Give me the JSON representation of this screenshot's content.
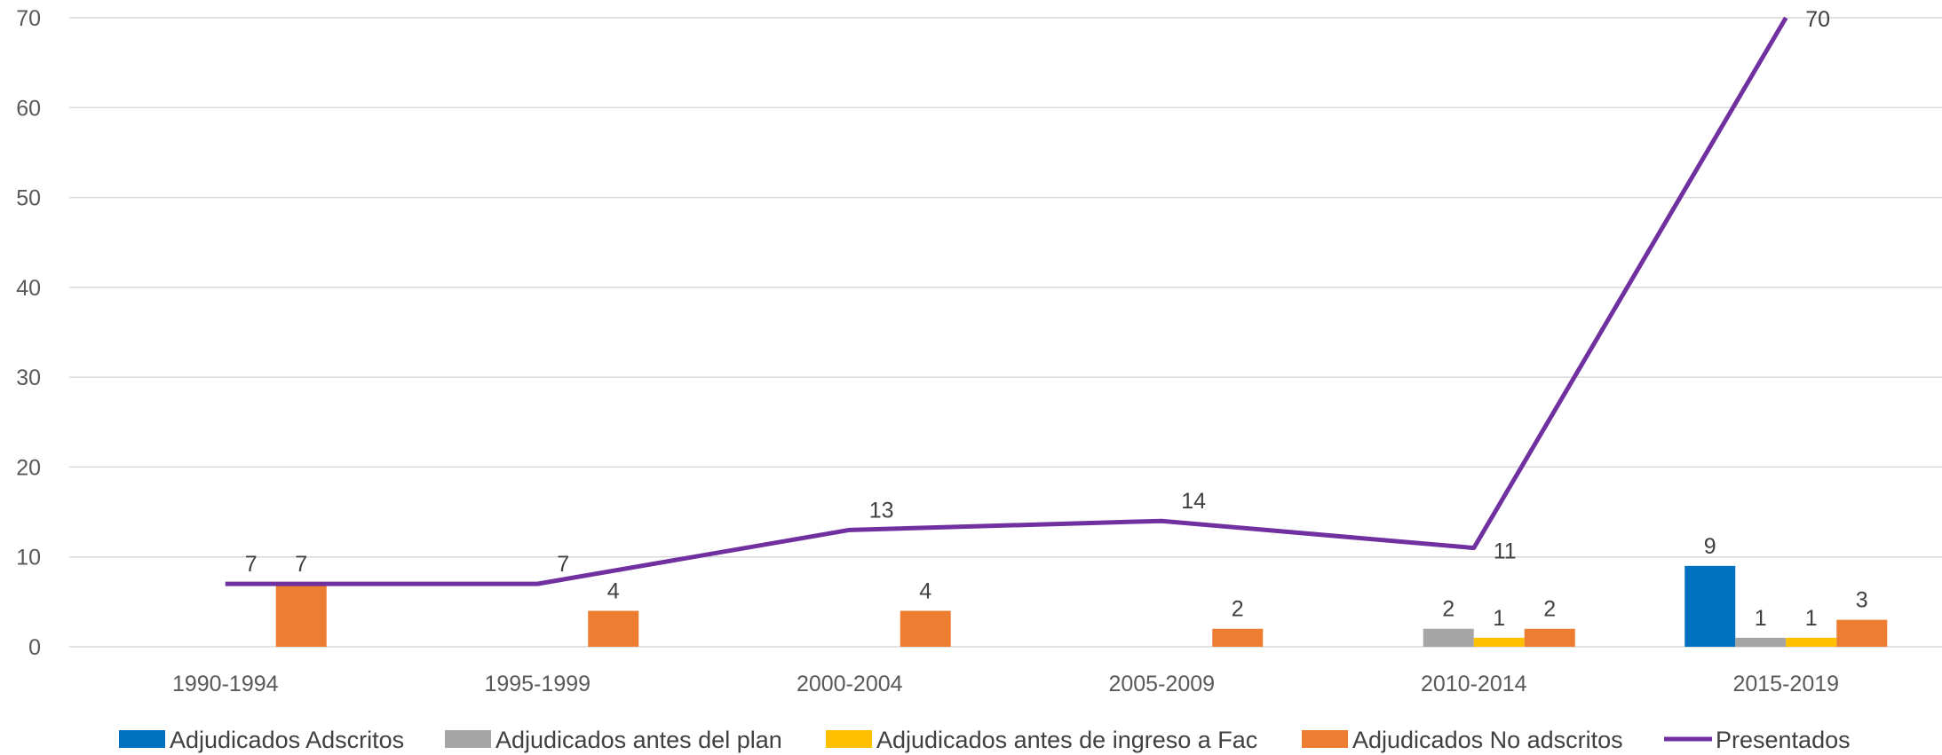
{
  "chart_data": {
    "type": "bar",
    "title": "",
    "xlabel": "",
    "ylabel": "",
    "ylim": [
      0,
      70
    ],
    "y_ticks": [
      0,
      10,
      20,
      30,
      40,
      50,
      60,
      70
    ],
    "grid": true,
    "legend_position": "bottom",
    "categories": [
      "1990-1994",
      "1995-1999",
      "2000-2004",
      "2005-2009",
      "2010-2014",
      "2015-2019"
    ],
    "series": [
      {
        "name": "Adjudicados Adscritos",
        "kind": "bar",
        "color": "#0070c0",
        "values": [
          0,
          0,
          0,
          0,
          0,
          9
        ],
        "labels": [
          "",
          "",
          "",
          "",
          "",
          "9"
        ]
      },
      {
        "name": "Adjudicados antes del plan",
        "kind": "bar",
        "color": "#a5a5a5",
        "values": [
          0,
          0,
          0,
          0,
          2,
          1
        ],
        "labels": [
          "",
          "",
          "",
          "",
          "2",
          "1"
        ]
      },
      {
        "name": "Adjudicados antes de ingreso a Fac",
        "kind": "bar",
        "color": "#ffc000",
        "values": [
          0,
          0,
          0,
          0,
          1,
          1
        ],
        "labels": [
          "",
          "",
          "",
          "",
          "1",
          "1"
        ]
      },
      {
        "name": "Adjudicados No adscritos",
        "kind": "bar",
        "color": "#ed7d31",
        "values": [
          7,
          4,
          4,
          2,
          2,
          3
        ],
        "labels": [
          "7",
          "4",
          "4",
          "2",
          "2",
          "3"
        ]
      },
      {
        "name": "Presentados",
        "kind": "line",
        "color": "#7030a0",
        "values": [
          7,
          7,
          13,
          14,
          11,
          70
        ],
        "labels": [
          "7",
          "7",
          "13",
          "14",
          "11",
          "70"
        ]
      }
    ]
  }
}
